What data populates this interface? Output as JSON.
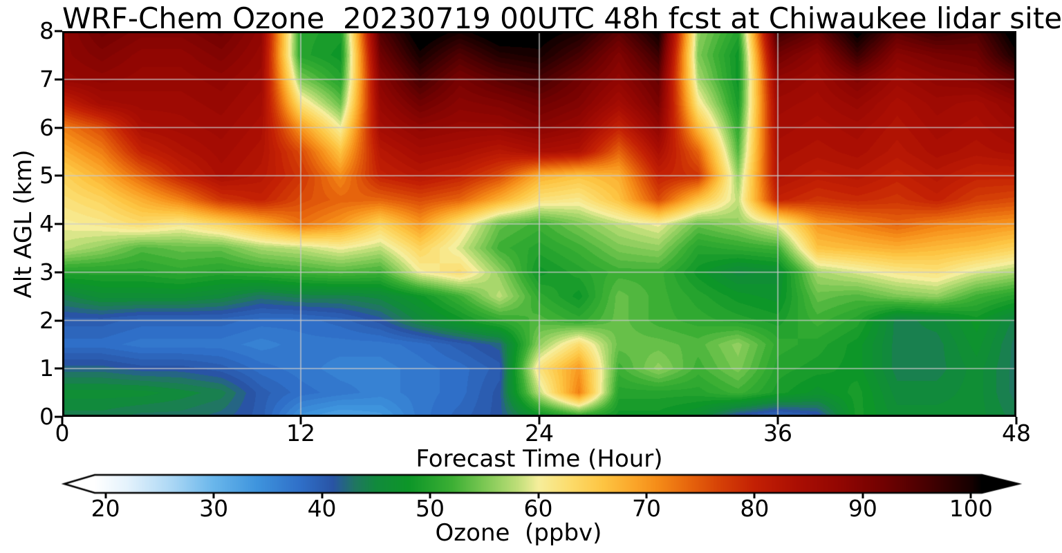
{
  "title": "WRF-Chem Ozone  20230719 00UTC 48h fcst at Chiwaukee lidar site",
  "axes": {
    "x_label": "Forecast Time (Hour)",
    "y_label": "Alt AGL (km)",
    "x_ticks": [
      0,
      12,
      24,
      36,
      48
    ],
    "y_ticks": [
      0,
      1,
      2,
      3,
      4,
      5,
      6,
      7,
      8
    ],
    "x_range": [
      0,
      48
    ],
    "y_range": [
      0,
      8
    ],
    "x_gridlines": [
      12,
      24,
      36
    ],
    "y_gridlines": [
      1,
      2,
      3,
      4,
      5,
      6,
      7
    ],
    "grid_color": "#c9c9c9"
  },
  "colorbar": {
    "label": "Ozone  (ppbv)",
    "ticks": [
      20,
      30,
      40,
      50,
      60,
      70,
      80,
      90,
      100
    ],
    "range": [
      19,
      101
    ],
    "extend": "both",
    "under_color": "#ffffff",
    "over_color": "#000000",
    "stops": [
      [
        19,
        [
          255,
          255,
          255
        ]
      ],
      [
        22,
        [
          228,
          242,
          252
        ]
      ],
      [
        26,
        [
          173,
          216,
          245
        ]
      ],
      [
        30,
        [
          105,
          182,
          235
        ]
      ],
      [
        34,
        [
          62,
          148,
          221
        ]
      ],
      [
        38,
        [
          47,
          111,
          200
        ]
      ],
      [
        41,
        [
          41,
          84,
          165
        ]
      ],
      [
        43,
        [
          32,
          118,
          98
        ]
      ],
      [
        45,
        [
          17,
          138,
          60
        ]
      ],
      [
        48,
        [
          13,
          150,
          40
        ]
      ],
      [
        52,
        [
          60,
          175,
          52
        ]
      ],
      [
        55,
        [
          124,
          200,
          84
        ]
      ],
      [
        58,
        [
          190,
          222,
          120
        ]
      ],
      [
        60,
        [
          246,
          238,
          156
        ]
      ],
      [
        63,
        [
          252,
          219,
          106
        ]
      ],
      [
        66,
        [
          253,
          196,
          66
        ]
      ],
      [
        69,
        [
          250,
          164,
          40
        ]
      ],
      [
        71,
        [
          245,
          140,
          24
        ]
      ],
      [
        74,
        [
          230,
          100,
          12
        ]
      ],
      [
        77,
        [
          212,
          62,
          6
        ]
      ],
      [
        80,
        [
          195,
          32,
          4
        ]
      ],
      [
        84,
        [
          170,
          14,
          3
        ]
      ],
      [
        88,
        [
          145,
          6,
          2
        ]
      ],
      [
        92,
        [
          112,
          1,
          1
        ]
      ],
      [
        96,
        [
          70,
          0,
          1
        ]
      ],
      [
        100,
        [
          22,
          0,
          0
        ]
      ],
      [
        101,
        [
          0,
          0,
          0
        ]
      ]
    ]
  },
  "chart_data": {
    "type": "heatmap",
    "title": "WRF-Chem Ozone  20230719 00UTC 48h fcst at Chiwaukee lidar site",
    "xlabel": "Forecast Time (Hour)",
    "ylabel": "Alt AGL (km)",
    "units": "ppbv",
    "x_hours": [
      0,
      2,
      4,
      6,
      8,
      10,
      12,
      14,
      16,
      18,
      20,
      22,
      24,
      26,
      28,
      30,
      32,
      34,
      36,
      38,
      40,
      42,
      44,
      46,
      48
    ],
    "y_km": [
      8,
      7.5,
      7,
      6.5,
      6,
      5.5,
      5,
      4.5,
      4,
      3.5,
      3,
      2.5,
      2,
      1.5,
      1,
      0.5,
      0
    ],
    "values_ppbv": [
      [
        88,
        92,
        90,
        90,
        92,
        88,
        50,
        49,
        95,
        103,
        100,
        103,
        102,
        100,
        94,
        101,
        56,
        50,
        97,
        93,
        102,
        94,
        97,
        95,
        103
      ],
      [
        88,
        90,
        88,
        88,
        90,
        87,
        50,
        48,
        92,
        100,
        95,
        99,
        100,
        96,
        90,
        97,
        55,
        48,
        92,
        88,
        97,
        89,
        91,
        92,
        100
      ],
      [
        87,
        88,
        87,
        87,
        88,
        86,
        55,
        50,
        89,
        96,
        91,
        94,
        96,
        92,
        88,
        93,
        57,
        48,
        88,
        86,
        90,
        86,
        88,
        89,
        93
      ],
      [
        80,
        85,
        86,
        86,
        87,
        85,
        62,
        54,
        87,
        92,
        89,
        90,
        92,
        90,
        85,
        91,
        61,
        49,
        86,
        85,
        87,
        84,
        86,
        85,
        88
      ],
      [
        72,
        76,
        84,
        85,
        86,
        84,
        70,
        60,
        85,
        88,
        87,
        87,
        89,
        87,
        80,
        88,
        67,
        51,
        85,
        84,
        85,
        83,
        85,
        84,
        86
      ],
      [
        68,
        72,
        80,
        83,
        85,
        83,
        76,
        66,
        82,
        85,
        84,
        82,
        84,
        83,
        74,
        84,
        74,
        53,
        84,
        83,
        84,
        82,
        84,
        83,
        84
      ],
      [
        64,
        68,
        74,
        80,
        84,
        82,
        78,
        71,
        80,
        82,
        80,
        76,
        68,
        66,
        68,
        80,
        78,
        56,
        83,
        81,
        82,
        80,
        82,
        80,
        80
      ],
      [
        62,
        64,
        68,
        72,
        78,
        80,
        76,
        74,
        74,
        76,
        74,
        68,
        62,
        61,
        66,
        76,
        66,
        58,
        80,
        78,
        79,
        78,
        80,
        77,
        76
      ],
      [
        60,
        61,
        63,
        61,
        64,
        68,
        73,
        70,
        64,
        70,
        62,
        54,
        52,
        55,
        58,
        60,
        54,
        56,
        60,
        70,
        72,
        74,
        72,
        71,
        70
      ],
      [
        58,
        56,
        53,
        54,
        54,
        57,
        58,
        60,
        58,
        64,
        59,
        52,
        50,
        52,
        55,
        56,
        50,
        51,
        52,
        66,
        67,
        68,
        67,
        66,
        64
      ],
      [
        50,
        50,
        50,
        51,
        50,
        51,
        52,
        53,
        52,
        60,
        63,
        56,
        48,
        50,
        52,
        52,
        48,
        45,
        46,
        57,
        59,
        61,
        62,
        59,
        57
      ],
      [
        44,
        46,
        46,
        46,
        45,
        43,
        44,
        44,
        45,
        48,
        52,
        58,
        51,
        48,
        54,
        52,
        50,
        48,
        47,
        54,
        53,
        55,
        56,
        52,
        50
      ],
      [
        40,
        40,
        39,
        39,
        39,
        38,
        38,
        39,
        41,
        45,
        48,
        51,
        53,
        51,
        54,
        52,
        51,
        50,
        49,
        52,
        50,
        44,
        45,
        48,
        44
      ],
      [
        38,
        38,
        37,
        37,
        37,
        36,
        37,
        37,
        37,
        38,
        40,
        42,
        56,
        63,
        54,
        54,
        53,
        56,
        51,
        50,
        48,
        44,
        44,
        47,
        43
      ],
      [
        42,
        42,
        41,
        41,
        40,
        38,
        37,
        36,
        36,
        37,
        38,
        40,
        62,
        70,
        52,
        56,
        52,
        55,
        50,
        49,
        48,
        44,
        44,
        46,
        43
      ],
      [
        46,
        46,
        46,
        45,
        44,
        40,
        38,
        37,
        36,
        37,
        38,
        41,
        58,
        72,
        50,
        50,
        50,
        52,
        49,
        47,
        49,
        45,
        45,
        46,
        43
      ],
      [
        44,
        44,
        43,
        43,
        42,
        40,
        34,
        32,
        33,
        37,
        39,
        41,
        47,
        50,
        48,
        48,
        46,
        40,
        38,
        40,
        49,
        46,
        46,
        46,
        44
      ]
    ]
  }
}
